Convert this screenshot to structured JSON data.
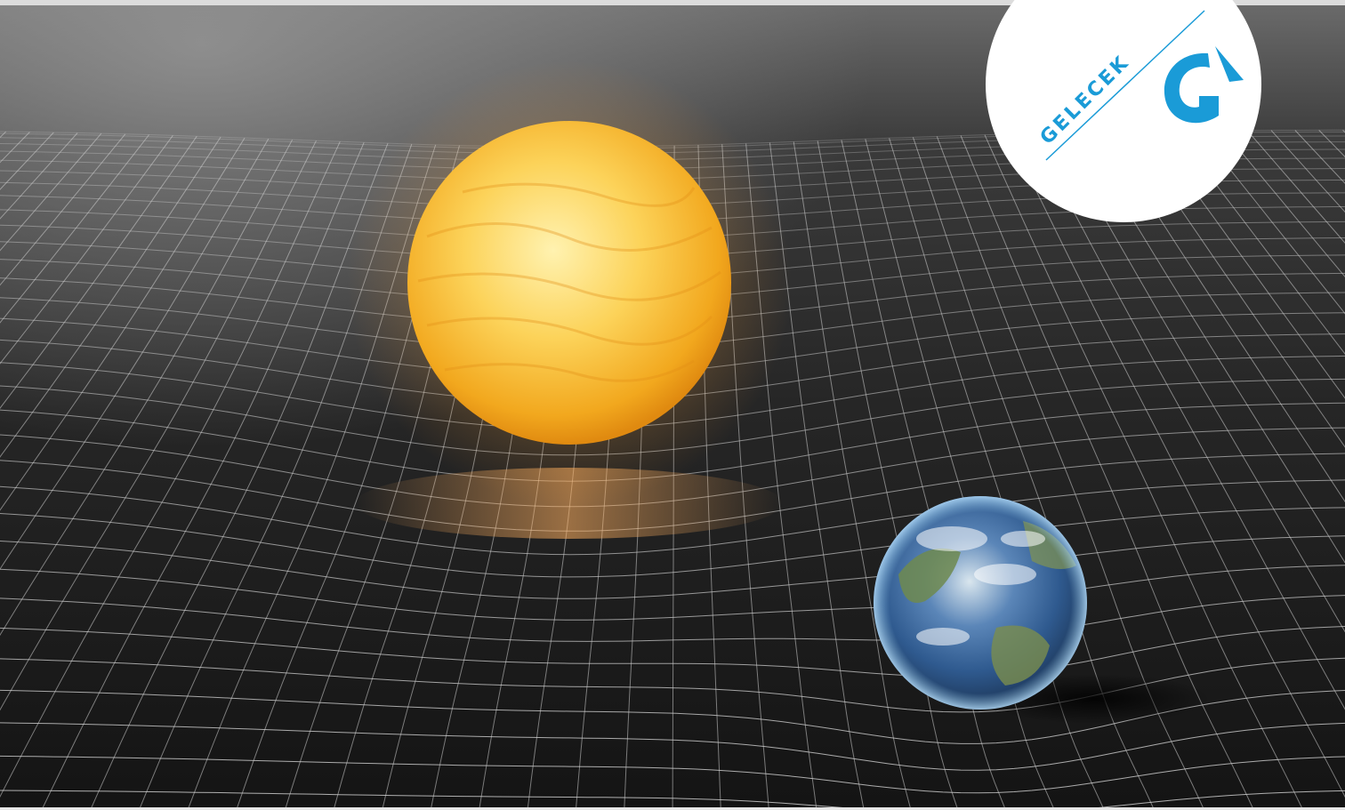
{
  "logo": {
    "wordmark": "GELECEK",
    "monogram": "G",
    "accent_color": "#1a9bd7",
    "badge_color": "#ffffff"
  },
  "scene": {
    "background_color": "#1c1c1c",
    "grid_color": "#cfcfcf",
    "objects": [
      {
        "name": "sun",
        "icon": "sun-icon"
      },
      {
        "name": "earth",
        "icon": "earth-icon"
      }
    ]
  }
}
